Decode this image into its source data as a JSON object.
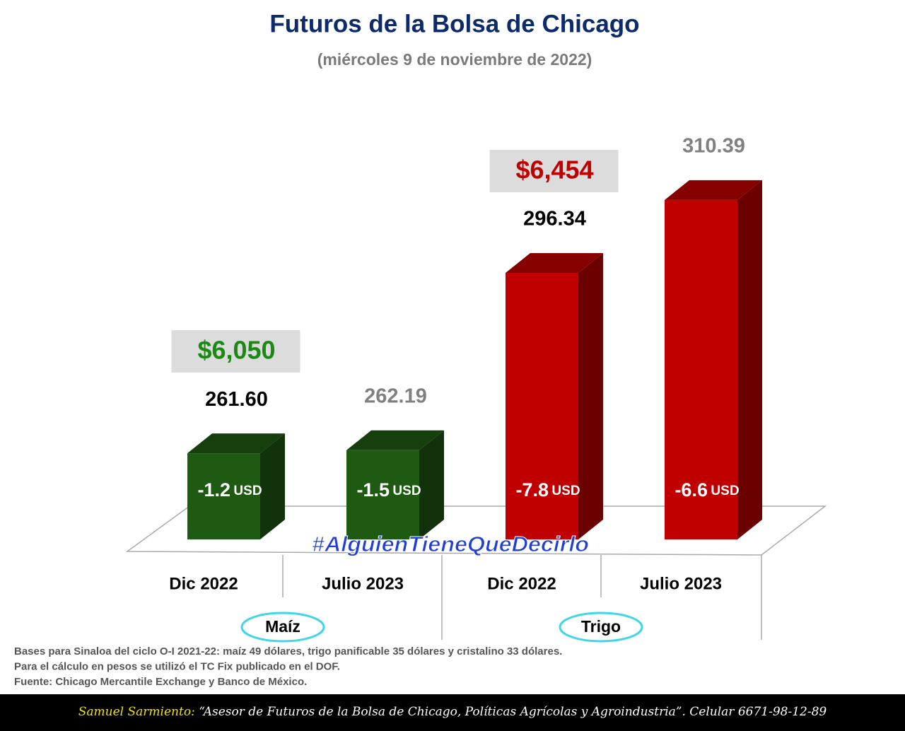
{
  "chart_data": {
    "type": "bar3d",
    "title": "Futuros de la Bolsa de Chicago",
    "subtitle": "(miércoles 9 de noviembre de 2022)",
    "categories": [
      "Dic 2022",
      "Julio 2023",
      "Dic 2022",
      "Julio 2023"
    ],
    "values": [
      261.6,
      262.19,
      296.34,
      310.39
    ],
    "value_labels": [
      "261.60",
      "262.19",
      "296.34",
      "310.39"
    ],
    "colors": [
      "#1e5a12",
      "#1e5a12",
      "#c00000",
      "#c00000"
    ],
    "ylim": [
      245,
      315
    ],
    "groups": [
      "Maíz",
      "Trigo"
    ],
    "peso_values": [
      6050,
      null,
      6454,
      null
    ],
    "peso_labels": [
      "$6,050",
      null,
      "$6,454",
      null
    ],
    "peso_colors": [
      "#1a8a12",
      null,
      "#c00000",
      null
    ],
    "basis_values": [
      -1.2,
      -1.5,
      -7.8,
      -6.6
    ],
    "basis_unit": "USD",
    "watermark": "#AlguienTieneQueDecirlo",
    "notes": [
      "Bases para Sinaloa del ciclo O-I 2021-22: maíz 49 dólares, trigo panificable 35 dólares y cristalino 33 dólares.",
      "Para el cálculo en pesos se utilizó el TC Fix publicado en el DOF.",
      "Fuente: Chicago Mercantile Exchange y Banco de México."
    ],
    "footer_author": "Samuel Sarmiento:",
    "footer_text": "“Asesor de Futuros de la Bolsa de Chicago, Políticas Agrícolas y Agroindustria”. Celular 6671-98-12-89"
  }
}
